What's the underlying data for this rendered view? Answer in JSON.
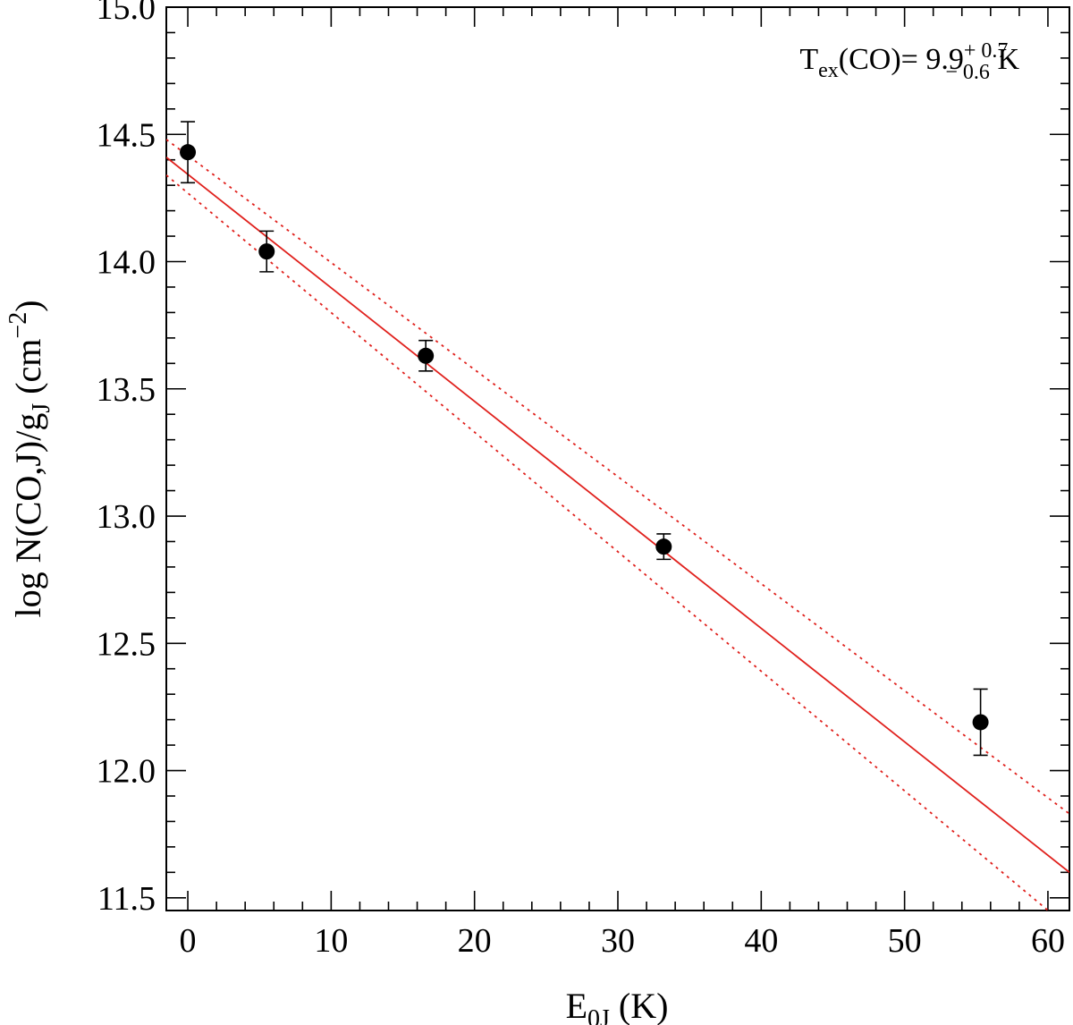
{
  "chart_data": {
    "type": "scatter",
    "xlabel": {
      "main": "E",
      "sub": "0J",
      "rest": " (K)"
    },
    "ylabel": {
      "prefix": "log N(CO,J)/g",
      "sub": "J",
      "mid": "  (cm",
      "sup": "−2",
      "suffix": ")"
    },
    "xlim": [
      -1.5,
      61.5
    ],
    "ylim": [
      11.45,
      15.0
    ],
    "xticks": [
      0,
      10,
      20,
      30,
      40,
      50,
      60
    ],
    "xtick_labels": [
      "0",
      "10",
      "20",
      "30",
      "40",
      "50",
      "60"
    ],
    "xminor_step": 2,
    "yticks": [
      11.5,
      12.0,
      12.5,
      13.0,
      13.5,
      14.0,
      14.5,
      15.0
    ],
    "ytick_labels": [
      "11.5",
      "12.0",
      "12.5",
      "13.0",
      "13.5",
      "14.0",
      "14.5",
      "15.0"
    ],
    "yminor_step": 0.1,
    "points": [
      {
        "x": 0.0,
        "y": 14.43,
        "err_low": 0.12,
        "err_high": 0.12
      },
      {
        "x": 5.5,
        "y": 14.04,
        "err_low": 0.08,
        "err_high": 0.08
      },
      {
        "x": 16.6,
        "y": 13.63,
        "err_low": 0.06,
        "err_high": 0.06
      },
      {
        "x": 33.2,
        "y": 12.88,
        "err_low": 0.05,
        "err_high": 0.05
      },
      {
        "x": 55.3,
        "y": 12.19,
        "err_low": 0.13,
        "err_high": 0.13
      }
    ],
    "fit_line": {
      "x": [
        -1.5,
        61.5
      ],
      "y": [
        14.41,
        11.6
      ],
      "color": "#e0201c",
      "style": "solid"
    },
    "fit_bounds": [
      {
        "x": [
          -1.5,
          61.5
        ],
        "y": [
          14.48,
          11.83
        ],
        "color": "#e0201c",
        "style": "dotted"
      },
      {
        "x": [
          -1.5,
          61.5
        ],
        "y": [
          14.34,
          11.38
        ],
        "color": "#e0201c",
        "style": "dotted"
      }
    ],
    "annotation": {
      "lead": "T",
      "sub1": "ex",
      "mid": "(CO)=  9.9",
      "sup": "+ 0.7",
      "sub2": "− 0.6",
      "tail": " K"
    },
    "grid": false
  }
}
